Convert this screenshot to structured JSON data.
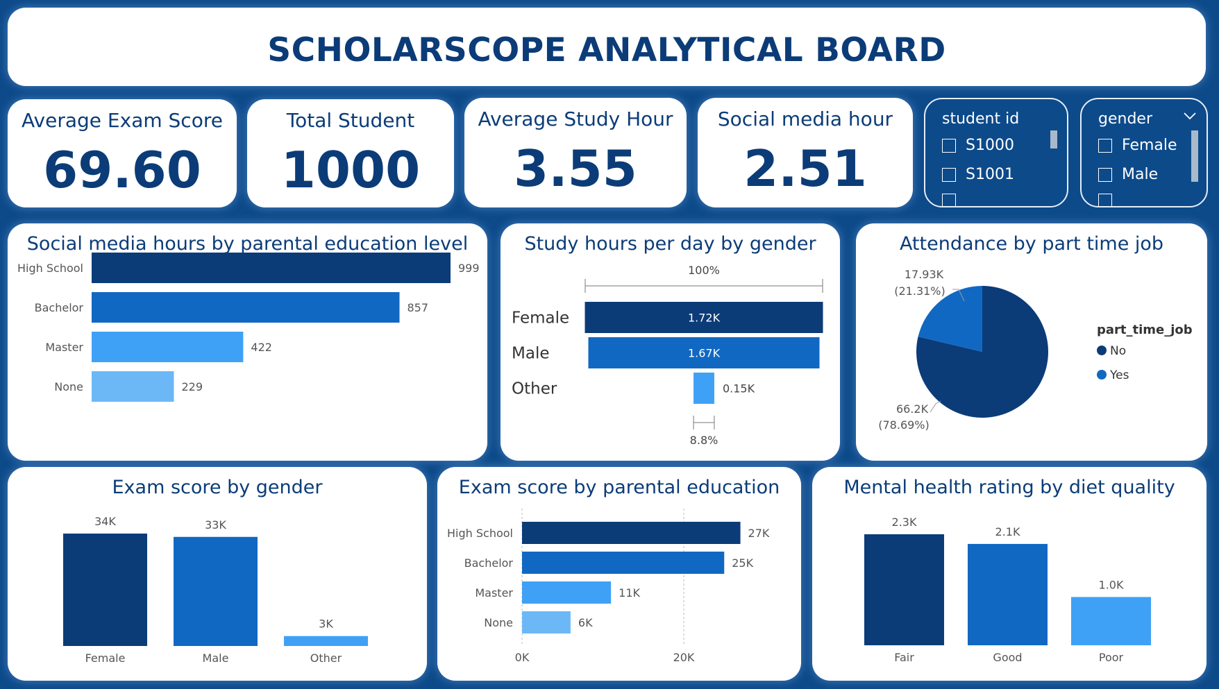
{
  "header": {
    "title": "SCHOLARSCOPE ANALYTICAL BOARD"
  },
  "kpis": [
    {
      "label": "Average Exam Score",
      "value": "69.60"
    },
    {
      "label": "Total Student",
      "value": "1000"
    },
    {
      "label": "Average Study Hour",
      "value": "3.55"
    },
    {
      "label": "Social media hour",
      "value": "2.51"
    }
  ],
  "slicers": {
    "student_id": {
      "title": "student id",
      "items": [
        "S1000",
        "S1001"
      ]
    },
    "gender": {
      "title": "gender",
      "items": [
        "Female",
        "Male"
      ]
    }
  },
  "colors": {
    "dark": "#0b3c78",
    "mid": "#1168c2",
    "light": "#3fa1f5",
    "lighter": "#6cb8f7"
  },
  "chart_data": [
    {
      "type": "bar",
      "orientation": "horizontal",
      "title": "Social media hours by parental education level",
      "categories": [
        "High School",
        "Bachelor",
        "Master",
        "None"
      ],
      "values": [
        999,
        857,
        422,
        229
      ],
      "value_labels": [
        "999",
        "857",
        "422",
        "229"
      ]
    },
    {
      "type": "bar",
      "subtype": "funnel",
      "title": "Study hours per day by gender",
      "categories": [
        "Female",
        "Male",
        "Other"
      ],
      "values": [
        1720,
        1670,
        150
      ],
      "value_labels": [
        "1.72K",
        "1.67K",
        "0.15K"
      ],
      "top_label": "100%",
      "bottom_label": "8.8%"
    },
    {
      "type": "pie",
      "title": "Attendance by part time job",
      "legend_title": "part_time_job",
      "legend_position": "right",
      "categories": [
        "No",
        "Yes"
      ],
      "values": [
        66200,
        17930
      ],
      "value_labels": [
        "66.2K",
        "17.93K"
      ],
      "percent_labels": [
        "(78.69%)",
        "(21.31%)"
      ]
    },
    {
      "type": "bar",
      "title": "Exam score by gender",
      "categories": [
        "Female",
        "Male",
        "Other"
      ],
      "values": [
        34000,
        33000,
        3000
      ],
      "value_labels": [
        "34K",
        "33K",
        "3K"
      ]
    },
    {
      "type": "bar",
      "orientation": "horizontal",
      "title": "Exam score by parental education",
      "categories": [
        "High School",
        "Bachelor",
        "Master",
        "None"
      ],
      "values": [
        27000,
        25000,
        11000,
        6000
      ],
      "value_labels": [
        "27K",
        "25K",
        "11K",
        "6K"
      ],
      "x_ticks": [
        "0K",
        "20K"
      ],
      "grid": true
    },
    {
      "type": "bar",
      "title": "Mental health rating by diet quality",
      "categories": [
        "Fair",
        "Good",
        "Poor"
      ],
      "values": [
        2300,
        2100,
        1000
      ],
      "value_labels": [
        "2.3K",
        "2.1K",
        "1.0K"
      ]
    }
  ]
}
